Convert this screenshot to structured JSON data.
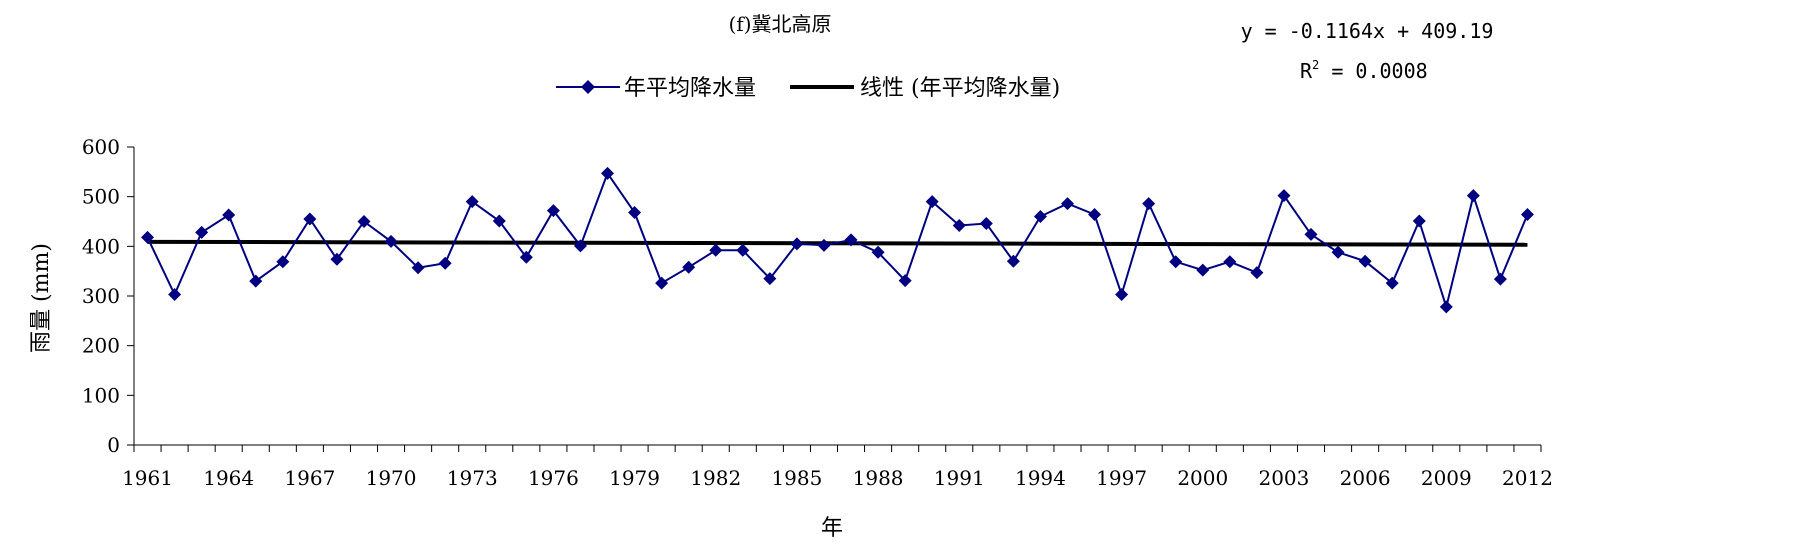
{
  "chart_data": {
    "type": "line",
    "title": "(f)冀北高原",
    "equation": "y = -0.1164x + 409.19",
    "r_squared_prefix": "R",
    "r_squared_exp": "2",
    "r_squared_value": " = 0.0008",
    "xlabel": "年",
    "ylabel": "雨量 (mm)",
    "ylim": [
      0,
      600
    ],
    "yticks": [
      0,
      100,
      200,
      300,
      400,
      500,
      600
    ],
    "xlim": [
      1961,
      2012
    ],
    "xtick_labels": [
      "1961",
      "1964",
      "1967",
      "1970",
      "1973",
      "1976",
      "1979",
      "1982",
      "1985",
      "1988",
      "1991",
      "1994",
      "1997",
      "2000",
      "2003",
      "2006",
      "2009",
      "2012"
    ],
    "legend_position": "top-center",
    "grid": false,
    "series": [
      {
        "name": "年平均降水量",
        "color": "#000080",
        "marker": "diamond",
        "x": [
          1961,
          1962,
          1963,
          1964,
          1965,
          1966,
          1967,
          1968,
          1969,
          1970,
          1971,
          1972,
          1973,
          1974,
          1975,
          1976,
          1977,
          1978,
          1979,
          1980,
          1981,
          1982,
          1983,
          1984,
          1985,
          1986,
          1987,
          1988,
          1989,
          1990,
          1991,
          1992,
          1993,
          1994,
          1995,
          1996,
          1997,
          1998,
          1999,
          2000,
          2001,
          2002,
          2003,
          2004,
          2005,
          2006,
          2007,
          2008,
          2009,
          2010,
          2011,
          2012
        ],
        "values": [
          418,
          303,
          428,
          463,
          330,
          369,
          455,
          374,
          450,
          410,
          357,
          366,
          490,
          451,
          378,
          472,
          401,
          547,
          468,
          326,
          358,
          392,
          392,
          335,
          405,
          402,
          413,
          388,
          331,
          490,
          442,
          446,
          370,
          460,
          486,
          464,
          303,
          486,
          369,
          352,
          369,
          347,
          502,
          424,
          388,
          370,
          326,
          451,
          278,
          502,
          334,
          464
        ]
      },
      {
        "name": "线性 (年平均降水量)",
        "color": "#000000",
        "type": "trendline",
        "slope": -0.1164,
        "intercept": 409.19
      }
    ]
  }
}
